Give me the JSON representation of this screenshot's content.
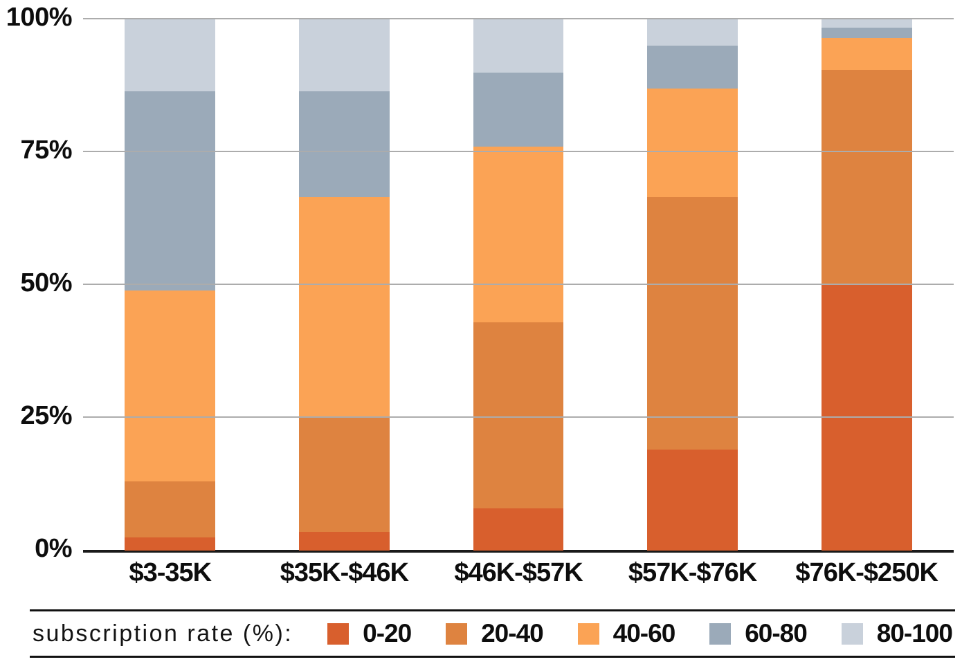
{
  "chart_data": {
    "type": "bar",
    "subtype": "stacked-percentage-column",
    "title": "",
    "xlabel": "",
    "ylabel": "",
    "ylim": [
      0,
      100
    ],
    "grid": true,
    "categories": [
      "$3-35K",
      "$35K-$46K",
      "$46K-$57K",
      "$57K-$76K",
      "$76K-$250K"
    ],
    "series": [
      {
        "name": "0-20",
        "color": "#d85f2d",
        "values": [
          2.5,
          3.5,
          8,
          19,
          50
        ]
      },
      {
        "name": "20-40",
        "color": "#de8340",
        "values": [
          10.5,
          21.5,
          35,
          47.5,
          40.5
        ]
      },
      {
        "name": "40-60",
        "color": "#fba355",
        "values": [
          36,
          41.5,
          33,
          20.5,
          6
        ]
      },
      {
        "name": "60-80",
        "color": "#9baab9",
        "values": [
          37.5,
          20,
          14,
          8,
          2
        ]
      },
      {
        "name": "80-100",
        "color": "#c9d1db",
        "values": [
          13.5,
          13.5,
          10,
          5,
          1.5
        ]
      }
    ],
    "y_ticks": [
      {
        "label": "0%",
        "value": 0
      },
      {
        "label": "25%",
        "value": 25
      },
      {
        "label": "50%",
        "value": 50
      },
      {
        "label": "75%",
        "value": 75
      },
      {
        "label": "100%",
        "value": 100
      }
    ],
    "legend_position": "bottom",
    "legend_title": "subscription rate (%):"
  },
  "colors": {
    "background": "#ffffff",
    "gridline": "#acacac",
    "axis_line": "#1a1a1a",
    "text": "#0d0d0d"
  }
}
